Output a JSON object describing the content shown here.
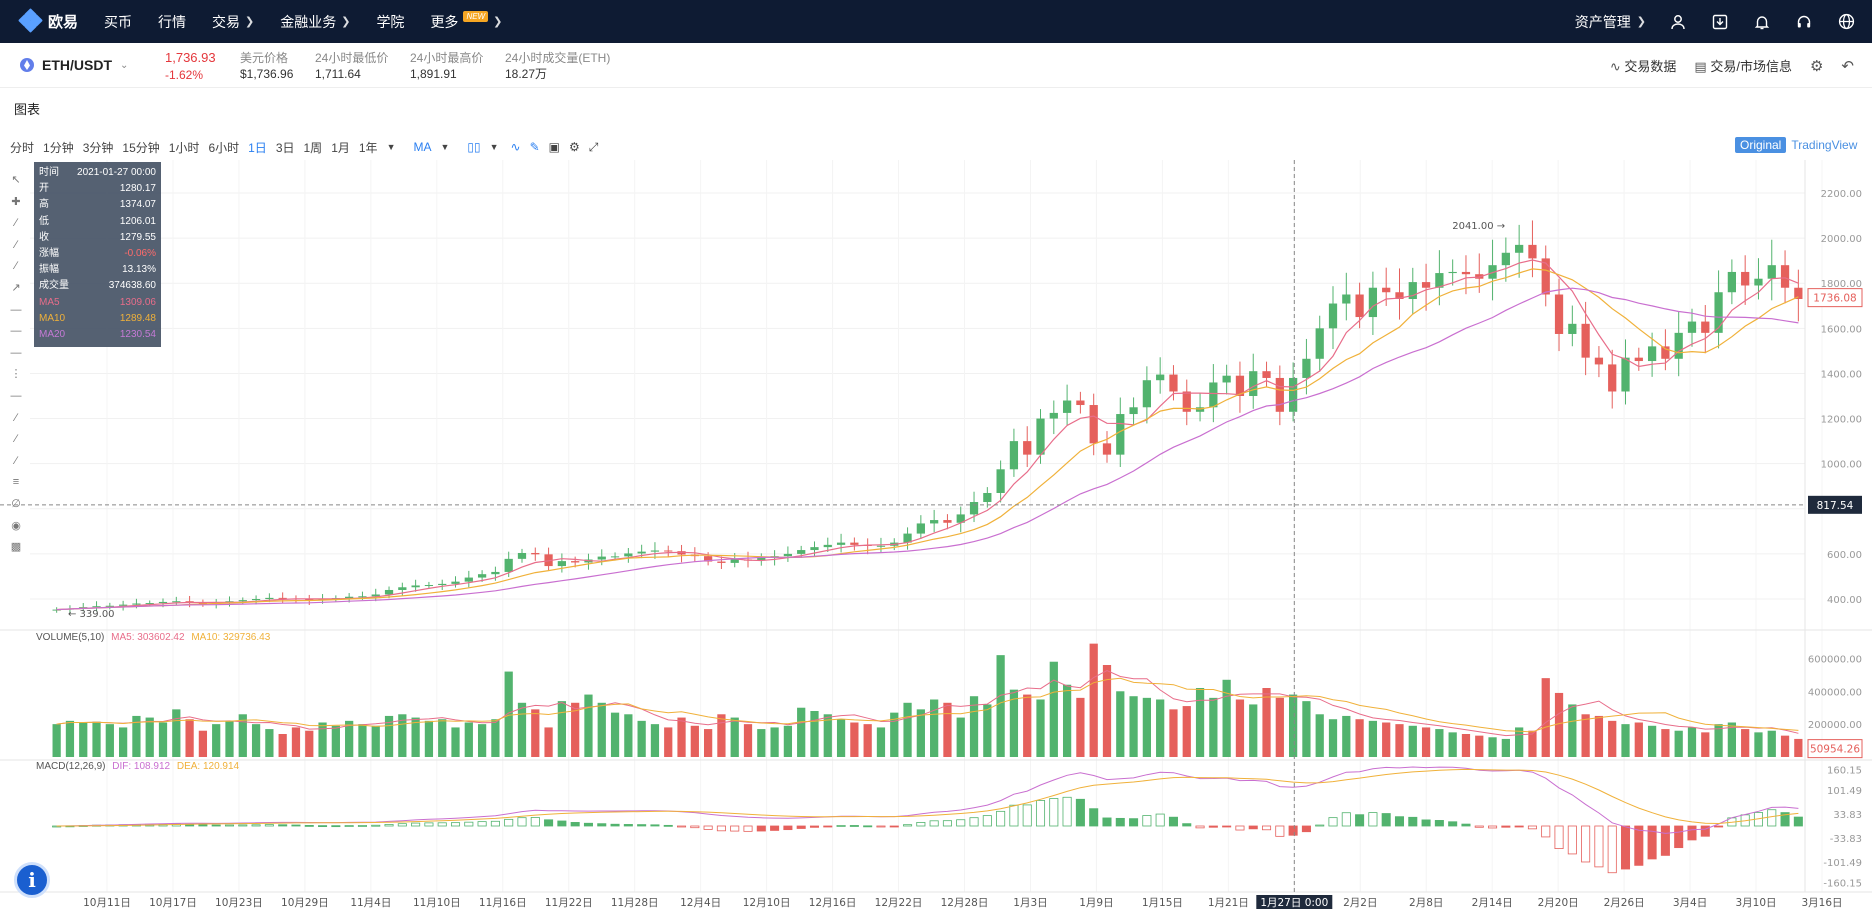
{
  "nav": {
    "brand": "欧易",
    "items": [
      "买币",
      "行情",
      "交易",
      "金融业务",
      "学院",
      "更多"
    ],
    "new_badge": "NEW",
    "asset_label": "资产管理"
  },
  "ticker": {
    "pair": "ETH/USDT",
    "price": "1,736.93",
    "change": "-1.62%",
    "stats": [
      {
        "label": "美元价格",
        "value": "$1,736.96"
      },
      {
        "label": "24小时最低价",
        "value": "1,711.64"
      },
      {
        "label": "24小时最高价",
        "value": "1,891.91"
      },
      {
        "label": "24小时成交量(ETH)",
        "value": "18.27万"
      }
    ],
    "trade_data": "交易数据",
    "market_info": "交易/市场信息"
  },
  "chart_header": {
    "title": "图表",
    "intervals": [
      "分时",
      "1分钟",
      "3分钟",
      "15分钟",
      "1小时",
      "6小时",
      "1日",
      "3日",
      "1周",
      "1月",
      "1年"
    ],
    "active_interval": "1日",
    "indicator": "MA",
    "view_original": "Original",
    "view_tradingview": "TradingView"
  },
  "infobox": {
    "rows": [
      {
        "k": "时间",
        "v": "2021-01-27 00:00"
      },
      {
        "k": "开",
        "v": "1280.17"
      },
      {
        "k": "高",
        "v": "1374.07"
      },
      {
        "k": "低",
        "v": "1206.01"
      },
      {
        "k": "收",
        "v": "1279.55"
      },
      {
        "k": "涨幅",
        "v": "-0.06%"
      },
      {
        "k": "振幅",
        "v": "13.13%"
      },
      {
        "k": "成交量",
        "v": "374638.60"
      },
      {
        "k": "MA5",
        "v": "1309.06"
      },
      {
        "k": "MA10",
        "v": "1289.48"
      },
      {
        "k": "MA20",
        "v": "1230.54"
      }
    ]
  },
  "chart_data": {
    "type": "candlestick",
    "price_axis": {
      "ticks": [
        "2200.00",
        "2000.00",
        "1800.00",
        "1600.00",
        "1400.00",
        "1200.00",
        "1000.00",
        "800.00",
        "600.00",
        "400.00"
      ],
      "min": 300,
      "max": 2260
    },
    "x_labels": [
      "10月11日",
      "10月17日",
      "10月23日",
      "10月29日",
      "11月4日",
      "11月10日",
      "11月16日",
      "11月22日",
      "11月28日",
      "12月4日",
      "12月10日",
      "12月16日",
      "12月22日",
      "12月28日",
      "1月3日",
      "1月9日",
      "1月15日",
      "1月21日",
      "1月27日 0:00",
      "2月2日",
      "2月8日",
      "2月14日",
      "2月20日",
      "2月26日",
      "3月4日",
      "3月10日",
      "3月16日"
    ],
    "crosshair_price": "817.54",
    "last_price_label": "1736.08",
    "high_marker": "2041.00",
    "low_marker": "339.00",
    "close": [
      353,
      358,
      364,
      368,
      370,
      375,
      380,
      382,
      387,
      390,
      384,
      380,
      383,
      390,
      395,
      400,
      405,
      402,
      400,
      396,
      400,
      404,
      410,
      412,
      420,
      440,
      452,
      460,
      462,
      467,
      477,
      495,
      510,
      520,
      578,
      604,
      598,
      546,
      568,
      562,
      575,
      588,
      589,
      602,
      610,
      615,
      612,
      597,
      590,
      566,
      560,
      575,
      570,
      582,
      590,
      600,
      617,
      630,
      640,
      650,
      640,
      635,
      636,
      650,
      690,
      735,
      750,
      738,
      775,
      830,
      870,
      975,
      1100,
      1040,
      1200,
      1225,
      1280,
      1260,
      1090,
      1040,
      1220,
      1250,
      1370,
      1395,
      1320,
      1230,
      1250,
      1360,
      1390,
      1300,
      1410,
      1380,
      1230,
      1380,
      1465,
      1600,
      1710,
      1750,
      1650,
      1780,
      1760,
      1730,
      1805,
      1780,
      1845,
      1850,
      1840,
      1820,
      1880,
      1935,
      1970,
      1910,
      1750,
      1575,
      1620,
      1470,
      1440,
      1320,
      1470,
      1455,
      1520,
      1465,
      1580,
      1630,
      1580,
      1760,
      1850,
      1790,
      1820,
      1880,
      1780,
      1730
    ],
    "volume": {
      "ma_label": "VOLUME(5,10)",
      "ma5_label": "MA5: 303602.42",
      "ma10_label": "MA10: 329736.43",
      "ticks": [
        "600000.00",
        "400000.00",
        "200000.00"
      ],
      "last_label": "50954.26",
      "values": [
        200000,
        220000,
        210000,
        215000,
        200000,
        180000,
        250000,
        240000,
        210000,
        290000,
        230000,
        160000,
        200000,
        220000,
        260000,
        200000,
        170000,
        140000,
        180000,
        160000,
        210000,
        190000,
        220000,
        200000,
        190000,
        250000,
        260000,
        240000,
        220000,
        230000,
        180000,
        210000,
        200000,
        230000,
        520000,
        330000,
        290000,
        180000,
        340000,
        330000,
        380000,
        330000,
        270000,
        260000,
        220000,
        200000,
        180000,
        240000,
        190000,
        170000,
        260000,
        240000,
        200000,
        170000,
        180000,
        190000,
        300000,
        280000,
        260000,
        230000,
        210000,
        200000,
        180000,
        270000,
        330000,
        290000,
        350000,
        330000,
        240000,
        370000,
        320000,
        620000,
        410000,
        380000,
        350000,
        580000,
        440000,
        360000,
        690000,
        560000,
        400000,
        370000,
        360000,
        350000,
        290000,
        310000,
        420000,
        360000,
        470000,
        350000,
        320000,
        420000,
        360000,
        380000,
        340000,
        260000,
        230000,
        250000,
        230000,
        220000,
        210000,
        200000,
        190000,
        180000,
        170000,
        150000,
        140000,
        130000,
        120000,
        110000,
        180000,
        160000,
        480000,
        390000,
        320000,
        260000,
        250000,
        220000,
        200000,
        210000,
        190000,
        170000,
        160000,
        180000,
        150000,
        200000,
        210000,
        170000,
        150000,
        160000,
        130000,
        110000
      ]
    },
    "macd": {
      "label": "MACD(12,26,9)",
      "dif_label": "DIF: 108.912",
      "dea_label": "DEA: 120.914",
      "ticks": [
        "160.15",
        "101.49",
        "33.83",
        "-33.83",
        "-101.49",
        "-160.15"
      ]
    }
  },
  "colors": {
    "up": "#52b36e",
    "down": "#e5605c",
    "ma5": "#e86d8a",
    "ma10": "#f0b13a",
    "ma20": "#c96fd0",
    "nav_bg": "#0e1b33"
  }
}
